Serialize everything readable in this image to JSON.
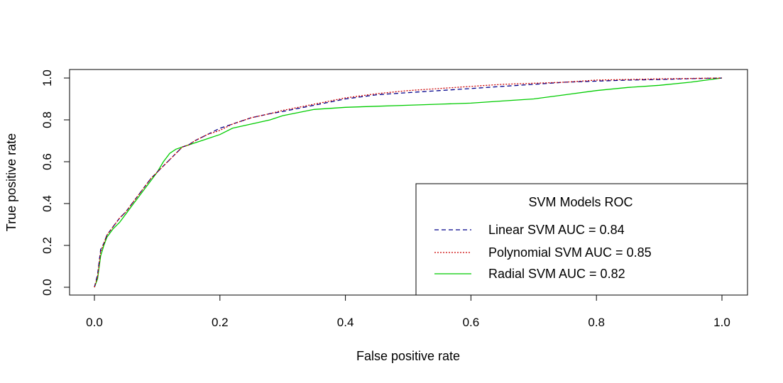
{
  "chart_data": {
    "type": "line",
    "title": "",
    "xlabel": "False positive rate",
    "ylabel": "True positive rate",
    "xlim": [
      0,
      1
    ],
    "ylim": [
      0,
      1
    ],
    "x_ticks": [
      "0.0",
      "0.2",
      "0.4",
      "0.6",
      "0.8",
      "1.0"
    ],
    "y_ticks": [
      "0.0",
      "0.2",
      "0.4",
      "0.6",
      "0.8",
      "1.0"
    ],
    "grid": false,
    "legend": {
      "title": "SVM Models ROC",
      "placement": "bottom-right"
    },
    "series": [
      {
        "name": "Linear SVM AUC = 0.84",
        "color": "#00008B",
        "dash": "dashed",
        "x": [
          0,
          0.005,
          0.01,
          0.015,
          0.02,
          0.03,
          0.04,
          0.05,
          0.06,
          0.07,
          0.08,
          0.09,
          0.1,
          0.11,
          0.12,
          0.13,
          0.14,
          0.15,
          0.16,
          0.18,
          0.2,
          0.22,
          0.25,
          0.28,
          0.3,
          0.35,
          0.4,
          0.45,
          0.5,
          0.55,
          0.6,
          0.65,
          0.7,
          0.75,
          0.8,
          0.85,
          0.9,
          0.95,
          1.0
        ],
        "y": [
          0,
          0.06,
          0.18,
          0.21,
          0.25,
          0.29,
          0.33,
          0.36,
          0.4,
          0.44,
          0.48,
          0.52,
          0.55,
          0.58,
          0.61,
          0.64,
          0.67,
          0.68,
          0.7,
          0.73,
          0.76,
          0.78,
          0.81,
          0.83,
          0.84,
          0.87,
          0.9,
          0.92,
          0.93,
          0.94,
          0.95,
          0.96,
          0.97,
          0.98,
          0.985,
          0.99,
          0.993,
          0.997,
          1.0
        ]
      },
      {
        "name": "Polynomial SVM AUC = 0.85",
        "color": "#CC0000",
        "dash": "dotted",
        "x": [
          0,
          0.005,
          0.01,
          0.015,
          0.02,
          0.03,
          0.04,
          0.05,
          0.06,
          0.07,
          0.08,
          0.09,
          0.1,
          0.11,
          0.12,
          0.13,
          0.14,
          0.15,
          0.16,
          0.18,
          0.2,
          0.22,
          0.25,
          0.28,
          0.3,
          0.35,
          0.4,
          0.45,
          0.5,
          0.55,
          0.6,
          0.65,
          0.7,
          0.75,
          0.8,
          0.85,
          0.9,
          0.95,
          1.0
        ],
        "y": [
          0,
          0.05,
          0.17,
          0.21,
          0.25,
          0.29,
          0.33,
          0.36,
          0.4,
          0.44,
          0.48,
          0.52,
          0.55,
          0.58,
          0.61,
          0.64,
          0.67,
          0.68,
          0.7,
          0.73,
          0.75,
          0.78,
          0.81,
          0.83,
          0.845,
          0.875,
          0.905,
          0.925,
          0.94,
          0.95,
          0.96,
          0.97,
          0.975,
          0.98,
          0.99,
          0.993,
          0.996,
          0.998,
          1.0
        ]
      },
      {
        "name": "Radial SVM AUC = 0.82",
        "color": "#00CC00",
        "dash": "solid",
        "x": [
          0,
          0.005,
          0.01,
          0.015,
          0.02,
          0.03,
          0.04,
          0.05,
          0.06,
          0.07,
          0.08,
          0.09,
          0.1,
          0.11,
          0.12,
          0.13,
          0.14,
          0.15,
          0.16,
          0.18,
          0.2,
          0.22,
          0.25,
          0.28,
          0.3,
          0.35,
          0.4,
          0.45,
          0.5,
          0.55,
          0.6,
          0.65,
          0.7,
          0.75,
          0.8,
          0.85,
          0.9,
          0.95,
          1.0
        ],
        "y": [
          0,
          0.04,
          0.15,
          0.2,
          0.24,
          0.28,
          0.31,
          0.35,
          0.39,
          0.43,
          0.47,
          0.51,
          0.55,
          0.6,
          0.64,
          0.66,
          0.67,
          0.68,
          0.69,
          0.71,
          0.73,
          0.76,
          0.78,
          0.8,
          0.82,
          0.85,
          0.86,
          0.865,
          0.87,
          0.875,
          0.88,
          0.89,
          0.9,
          0.92,
          0.94,
          0.955,
          0.965,
          0.98,
          1.0
        ]
      }
    ]
  }
}
